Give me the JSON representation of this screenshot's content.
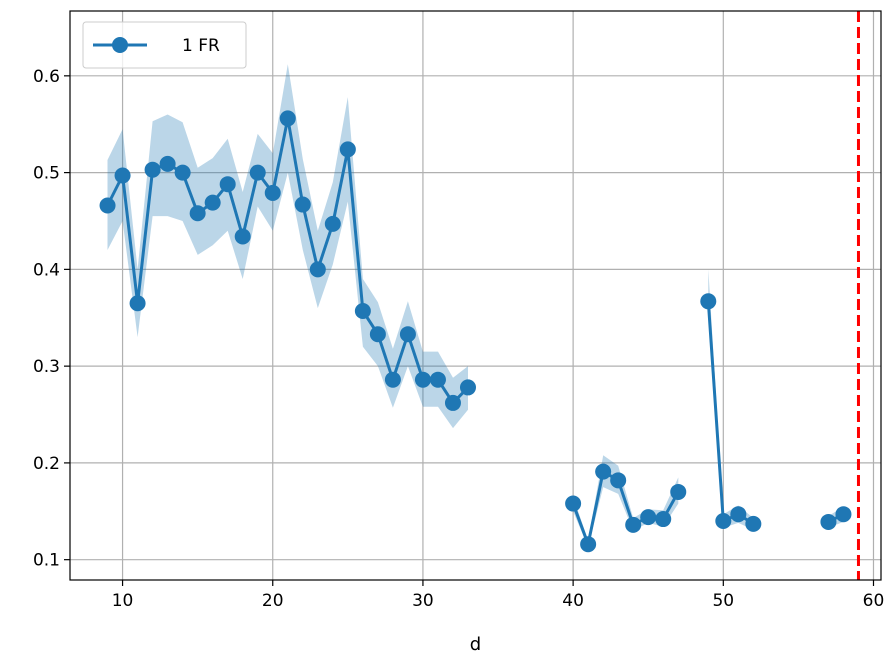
{
  "chart_data": {
    "type": "line",
    "xlabel": "d",
    "ylabel": "",
    "xlim": [
      6.5,
      60.5
    ],
    "ylim": [
      0.079,
      0.667
    ],
    "xticks": [
      10,
      20,
      30,
      40,
      50,
      60
    ],
    "yticks": [
      0.1,
      0.2,
      0.3,
      0.4,
      0.5,
      0.6
    ],
    "grid": true,
    "legend_position": "top-left",
    "series": [
      {
        "name": "1 FR",
        "color": "#1f77b4",
        "marker": "circle",
        "segments": [
          {
            "x": [
              9,
              10,
              11,
              12,
              13,
              14,
              15,
              16,
              17,
              18,
              19,
              20,
              21,
              22,
              23,
              24,
              25,
              26,
              27,
              28,
              29,
              30,
              31,
              32,
              33
            ],
            "y": [
              0.466,
              0.497,
              0.365,
              0.503,
              0.509,
              0.5,
              0.458,
              0.469,
              0.488,
              0.434,
              0.5,
              0.479,
              0.556,
              0.467,
              0.4,
              0.447,
              0.524,
              0.357,
              0.333,
              0.286,
              0.333,
              0.286,
              0.286,
              0.262,
              0.278
            ],
            "lower": [
              0.42,
              0.45,
              0.33,
              0.455,
              0.455,
              0.45,
              0.415,
              0.425,
              0.44,
              0.39,
              0.465,
              0.44,
              0.5,
              0.42,
              0.36,
              0.405,
              0.47,
              0.32,
              0.3,
              0.257,
              0.3,
              0.258,
              0.258,
              0.236,
              0.255
            ],
            "upper": [
              0.513,
              0.545,
              0.4,
              0.553,
              0.56,
              0.552,
              0.505,
              0.515,
              0.535,
              0.48,
              0.54,
              0.52,
              0.612,
              0.514,
              0.44,
              0.49,
              0.578,
              0.39,
              0.366,
              0.318,
              0.367,
              0.315,
              0.315,
              0.288,
              0.3
            ]
          },
          {
            "x": [
              40,
              41,
              42,
              43,
              44,
              45,
              46,
              47
            ],
            "y": [
              0.158,
              0.116,
              0.191,
              0.182,
              0.136,
              0.144,
              0.142,
              0.17
            ],
            "lower": [
              0.15,
              0.113,
              0.175,
              0.168,
              0.13,
              0.138,
              0.134,
              0.158
            ],
            "upper": [
              0.165,
              0.12,
              0.208,
              0.197,
              0.143,
              0.152,
              0.151,
              0.185
            ]
          },
          {
            "x": [
              49,
              50,
              51,
              52
            ],
            "y": [
              0.367,
              0.14,
              0.147,
              0.137
            ],
            "lower": [
              0.36,
              0.133,
              0.138,
              0.131
            ],
            "upper": [
              0.4,
              0.147,
              0.156,
              0.143
            ]
          },
          {
            "x": [
              57,
              58
            ],
            "y": [
              0.139,
              0.147
            ],
            "lower": [
              0.133,
              0.139
            ],
            "upper": [
              0.145,
              0.155
            ]
          }
        ]
      }
    ],
    "reference_line": {
      "x": 59,
      "color": "#ff0000",
      "style": "dashed"
    }
  }
}
